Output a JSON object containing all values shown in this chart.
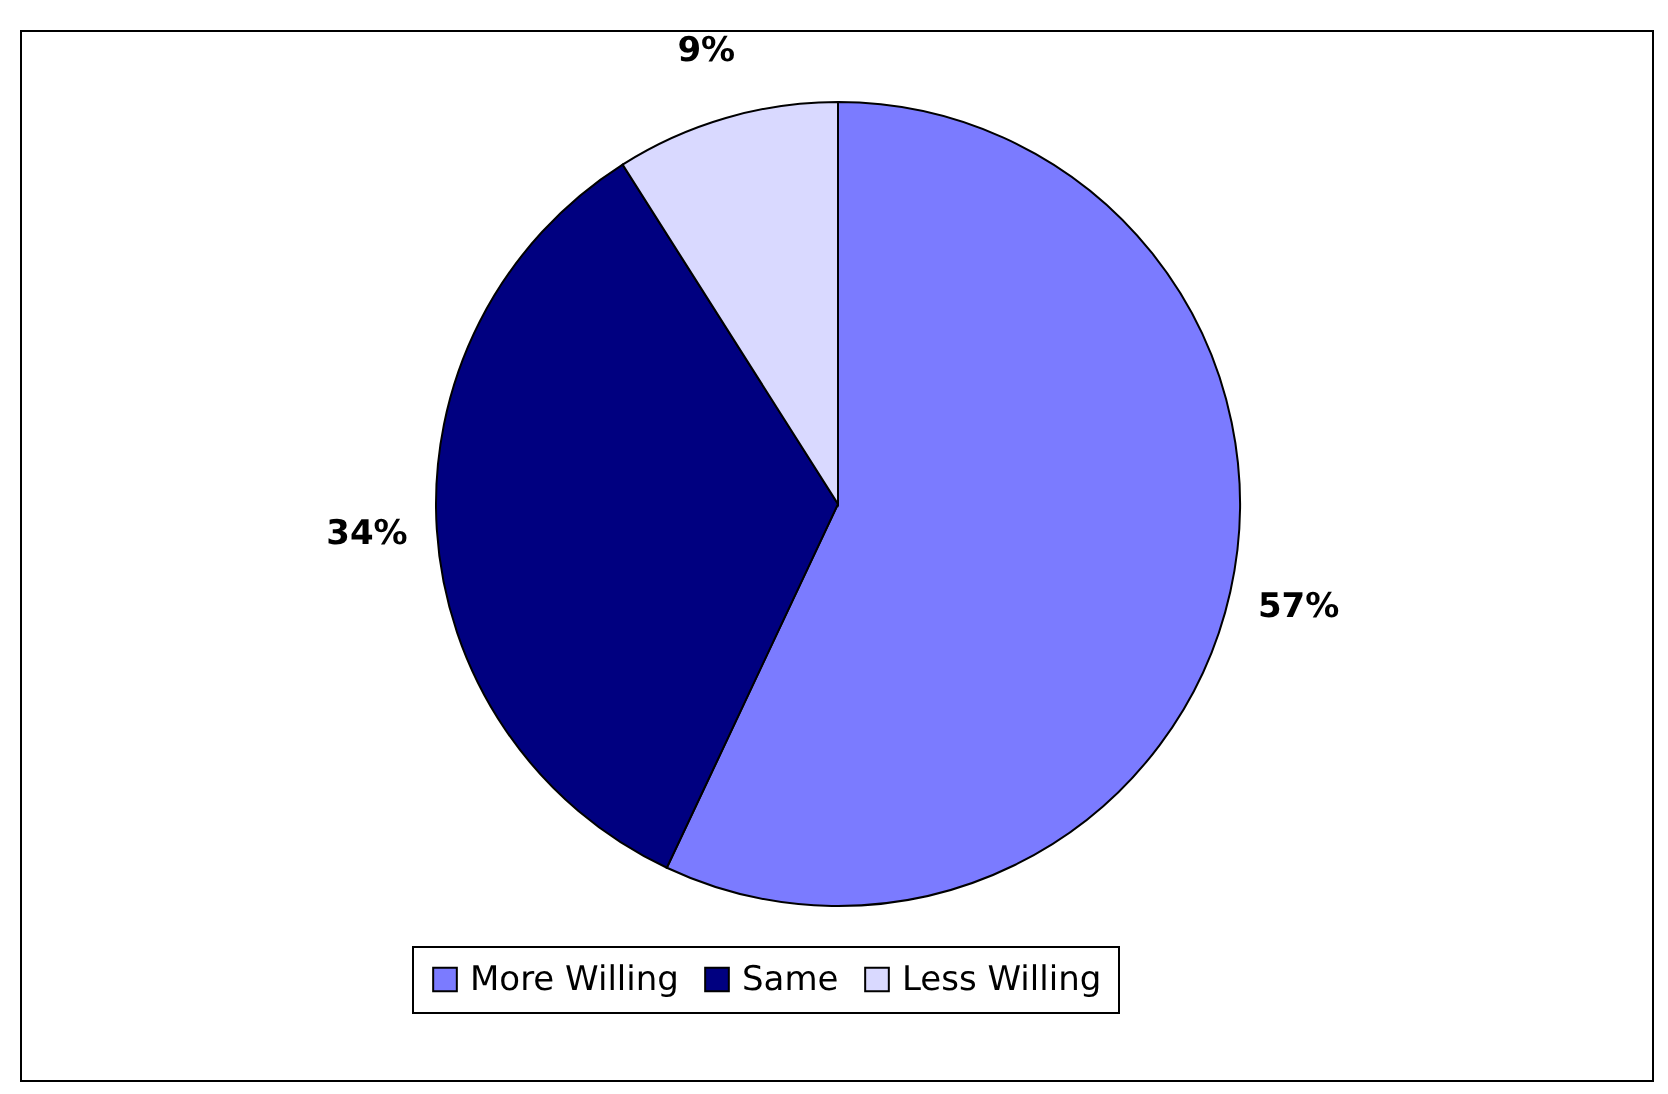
{
  "chart_data": {
    "type": "pie",
    "categories": [
      "More Willing",
      "Same",
      "Less Willing"
    ],
    "values": [
      57,
      34,
      9
    ],
    "colors": [
      "#7b7bff",
      "#000080",
      "#d9d9ff"
    ],
    "value_labels": [
      "57%",
      "34%",
      "9%"
    ],
    "legend": "bottom"
  }
}
